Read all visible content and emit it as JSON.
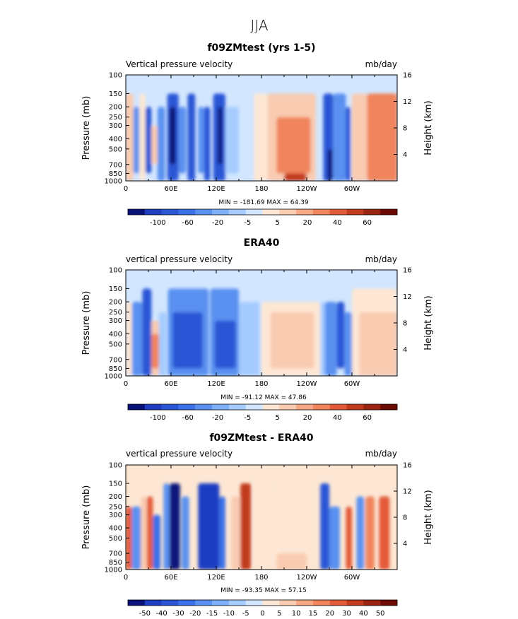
{
  "main_title": "JJA",
  "panels": [
    {
      "title": "f09ZMtest (yrs 1-5)",
      "left_label": "Vertical pressure velocity",
      "right_label": "mb/day",
      "minmax": "MIN = -181.69   MAX =   64.39",
      "colorbar": {
        "colors": [
          "#08127a",
          "#1f3ec2",
          "#2a56d6",
          "#3a70e8",
          "#5a91f0",
          "#7db0f8",
          "#a6ccff",
          "#d2e6ff",
          "#fde7d4",
          "#f9cbb0",
          "#f6a885",
          "#f0845c",
          "#e35a38",
          "#c23b1e",
          "#9a2410",
          "#6e0a04"
        ],
        "labels": [
          "-100",
          "-60",
          "-20",
          "-5",
          "5",
          "20",
          "40",
          "60"
        ]
      }
    },
    {
      "title": "ERA40",
      "left_label": "vertical pressure velocity",
      "right_label": "mb/day",
      "minmax": "MIN =  -91.12   MAX =   47.86",
      "colorbar": {
        "colors": [
          "#08127a",
          "#1f3ec2",
          "#2a56d6",
          "#3a70e8",
          "#5a91f0",
          "#7db0f8",
          "#a6ccff",
          "#d2e6ff",
          "#fde7d4",
          "#f9cbb0",
          "#f6a885",
          "#f0845c",
          "#e35a38",
          "#c23b1e",
          "#9a2410",
          "#6e0a04"
        ],
        "labels": [
          "-100",
          "-60",
          "-20",
          "-5",
          "5",
          "20",
          "40",
          "60"
        ]
      }
    },
    {
      "title": "f09ZMtest - ERA40",
      "left_label": "vertical pressure velocity",
      "right_label": "mb/day",
      "minmax": "MIN =  -93.35   MAX =   57.15",
      "colorbar": {
        "colors": [
          "#08127a",
          "#1f3ec2",
          "#2a56d6",
          "#3a70e8",
          "#5a91f0",
          "#7db0f8",
          "#a6ccff",
          "#d2e6ff",
          "#fde7d4",
          "#f9cbb0",
          "#f6a885",
          "#f0845c",
          "#e35a38",
          "#c23b1e",
          "#9a2410",
          "#6e0a04"
        ],
        "labels": [
          "-50",
          "-40",
          "-30",
          "-20",
          "-15",
          "-10",
          "-5",
          "0",
          "5",
          "10",
          "15",
          "20",
          "30",
          "40",
          "50"
        ]
      }
    }
  ],
  "chart_data": {
    "type": "heatmap",
    "x_ticks": [
      "0",
      "60E",
      "120E",
      "180",
      "120W",
      "60W"
    ],
    "x_values": [
      0,
      60,
      120,
      180,
      240,
      300
    ],
    "x_range": [
      0,
      360
    ],
    "y_ticks": [
      "100",
      "150",
      "200",
      "250",
      "300",
      "400",
      "500",
      "700",
      "850",
      "1000"
    ],
    "y_values": [
      100,
      150,
      200,
      250,
      300,
      400,
      500,
      700,
      850,
      1000
    ],
    "y_range": [
      100,
      1000
    ],
    "y_scale": "log",
    "y_label": "Pressure (mb)",
    "y2_ticks": [
      "16",
      "12",
      "8",
      "4"
    ],
    "y2_values": [
      16,
      12,
      8,
      4
    ],
    "y2_label": "Height (km)",
    "fields": [
      {
        "name": "f09ZMtest (yrs 1-5)",
        "cells": [
          {
            "x": [
              0,
              10
            ],
            "p": [
              150,
              1000
            ],
            "v": 20
          },
          {
            "x": [
              10,
              18
            ],
            "p": [
              200,
              850
            ],
            "v": -20
          },
          {
            "x": [
              18,
              26
            ],
            "p": [
              150,
              1000
            ],
            "v": 5
          },
          {
            "x": [
              26,
              34
            ],
            "p": [
              200,
              850
            ],
            "v": -60
          },
          {
            "x": [
              34,
              42
            ],
            "p": [
              300,
              700
            ],
            "v": 20
          },
          {
            "x": [
              42,
              52
            ],
            "p": [
              200,
              1000
            ],
            "v": -20
          },
          {
            "x": [
              55,
              70
            ],
            "p": [
              150,
              1000
            ],
            "v": -60
          },
          {
            "x": [
              58,
              66
            ],
            "p": [
              200,
              700
            ],
            "v": -100
          },
          {
            "x": [
              70,
              80
            ],
            "p": [
              200,
              850
            ],
            "v": -20
          },
          {
            "x": [
              82,
              92
            ],
            "p": [
              150,
              1000
            ],
            "v": -60
          },
          {
            "x": [
              96,
              104
            ],
            "p": [
              200,
              850
            ],
            "v": -20
          },
          {
            "x": [
              104,
              112
            ],
            "p": [
              200,
              1000
            ],
            "v": -60
          },
          {
            "x": [
              116,
              132
            ],
            "p": [
              150,
              1000
            ],
            "v": -60
          },
          {
            "x": [
              122,
              128
            ],
            "p": [
              200,
              700
            ],
            "v": -100
          },
          {
            "x": [
              132,
              150
            ],
            "p": [
              200,
              850
            ],
            "v": -5
          },
          {
            "x": [
              170,
              188
            ],
            "p": [
              150,
              1000
            ],
            "v": 5
          },
          {
            "x": [
              188,
              252
            ],
            "p": [
              150,
              1000
            ],
            "v": 20
          },
          {
            "x": [
              200,
              245
            ],
            "p": [
              250,
              850
            ],
            "v": 40
          },
          {
            "x": [
              210,
              240
            ],
            "p": [
              850,
              1000
            ],
            "v": 60
          },
          {
            "x": [
              262,
              275
            ],
            "p": [
              150,
              1000
            ],
            "v": -60
          },
          {
            "x": [
              268,
              274
            ],
            "p": [
              500,
              1000
            ],
            "v": -100
          },
          {
            "x": [
              275,
              292
            ],
            "p": [
              150,
              1000
            ],
            "v": -20
          },
          {
            "x": [
              292,
              298
            ],
            "p": [
              200,
              1000
            ],
            "v": -60
          },
          {
            "x": [
              300,
              320
            ],
            "p": [
              150,
              1000
            ],
            "v": 20
          },
          {
            "x": [
              320,
              360
            ],
            "p": [
              150,
              1000
            ],
            "v": 40
          }
        ]
      },
      {
        "name": "ERA40",
        "cells": [
          {
            "x": [
              0,
              8
            ],
            "p": [
              200,
              1000
            ],
            "v": 5
          },
          {
            "x": [
              8,
              22
            ],
            "p": [
              200,
              1000
            ],
            "v": -20
          },
          {
            "x": [
              22,
              34
            ],
            "p": [
              150,
              1000
            ],
            "v": -60
          },
          {
            "x": [
              34,
              44
            ],
            "p": [
              300,
              1000
            ],
            "v": 20
          },
          {
            "x": [
              34,
              44
            ],
            "p": [
              400,
              850
            ],
            "v": 40
          },
          {
            "x": [
              44,
              54
            ],
            "p": [
              250,
              1000
            ],
            "v": -5
          },
          {
            "x": [
              56,
              110
            ],
            "p": [
              150,
              1000
            ],
            "v": -20
          },
          {
            "x": [
              62,
              102
            ],
            "p": [
              250,
              850
            ],
            "v": -60
          },
          {
            "x": [
              112,
              150
            ],
            "p": [
              150,
              1000
            ],
            "v": -20
          },
          {
            "x": [
              118,
              146
            ],
            "p": [
              300,
              850
            ],
            "v": -60
          },
          {
            "x": [
              150,
              178
            ],
            "p": [
              200,
              1000
            ],
            "v": -5
          },
          {
            "x": [
              180,
              258
            ],
            "p": [
              200,
              1000
            ],
            "v": 5
          },
          {
            "x": [
              192,
              250
            ],
            "p": [
              250,
              850
            ],
            "v": 20
          },
          {
            "x": [
              258,
              264
            ],
            "p": [
              200,
              1000
            ],
            "v": -5
          },
          {
            "x": [
              264,
              280
            ],
            "p": [
              200,
              1000
            ],
            "v": -20
          },
          {
            "x": [
              280,
              290
            ],
            "p": [
              200,
              850
            ],
            "v": -60
          },
          {
            "x": [
              290,
              300
            ],
            "p": [
              250,
              1000
            ],
            "v": -20
          },
          {
            "x": [
              300,
              360
            ],
            "p": [
              150,
              1000
            ],
            "v": 5
          },
          {
            "x": [
              310,
              360
            ],
            "p": [
              250,
              1000
            ],
            "v": 20
          }
        ]
      },
      {
        "name": "f09ZMtest - ERA40",
        "cells": [
          {
            "x": [
              0,
              8
            ],
            "p": [
              250,
              1000
            ],
            "v": 30
          },
          {
            "x": [
              8,
              20
            ],
            "p": [
              250,
              1000
            ],
            "v": -15
          },
          {
            "x": [
              20,
              28
            ],
            "p": [
              200,
              1000
            ],
            "v": 10
          },
          {
            "x": [
              28,
              36
            ],
            "p": [
              200,
              1000
            ],
            "v": 30
          },
          {
            "x": [
              36,
              46
            ],
            "p": [
              300,
              1000
            ],
            "v": -20
          },
          {
            "x": [
              50,
              58
            ],
            "p": [
              150,
              1000
            ],
            "v": -15
          },
          {
            "x": [
              58,
              72
            ],
            "p": [
              150,
              1000
            ],
            "v": -50
          },
          {
            "x": [
              74,
              84
            ],
            "p": [
              200,
              1000
            ],
            "v": -15
          },
          {
            "x": [
              96,
              124
            ],
            "p": [
              150,
              1000
            ],
            "v": -40
          },
          {
            "x": [
              124,
              132
            ],
            "p": [
              200,
              1000
            ],
            "v": -20
          },
          {
            "x": [
              140,
              152
            ],
            "p": [
              200,
              1000
            ],
            "v": 10
          },
          {
            "x": [
              152,
              166
            ],
            "p": [
              150,
              1000
            ],
            "v": 40
          },
          {
            "x": [
              170,
              200
            ],
            "p": [
              150,
              1000
            ],
            "v": 5
          },
          {
            "x": [
              200,
              240
            ],
            "p": [
              700,
              1000
            ],
            "v": 10
          },
          {
            "x": [
              258,
              270
            ],
            "p": [
              150,
              1000
            ],
            "v": -30
          },
          {
            "x": [
              270,
              284
            ],
            "p": [
              250,
              1000
            ],
            "v": -15
          },
          {
            "x": [
              292,
              300
            ],
            "p": [
              250,
              1000
            ],
            "v": 30
          },
          {
            "x": [
              306,
              316
            ],
            "p": [
              200,
              1000
            ],
            "v": -15
          },
          {
            "x": [
              318,
              330
            ],
            "p": [
              200,
              1000
            ],
            "v": 20
          },
          {
            "x": [
              336,
              350
            ],
            "p": [
              200,
              1000
            ],
            "v": 30
          }
        ]
      }
    ]
  }
}
